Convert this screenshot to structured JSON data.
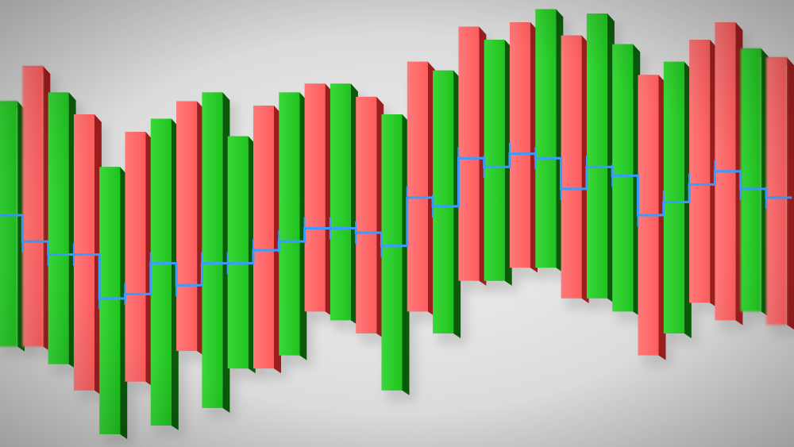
{
  "scene": {
    "description_free": true,
    "colors": {
      "background_center": "#f2f2f2",
      "background_edge": "#c9c9c9",
      "bull_front": "#1fc21f",
      "bull_light": "#3ad83a",
      "bull_side": "#0a5a0a",
      "bear_front": "#ff5c5c",
      "bear_light": "#ff7a7a",
      "bear_side": "#9a1e1e",
      "line": "#3a9cff",
      "shadow": "#9a9a9a"
    },
    "candles": [
      {
        "kind": "bull",
        "open": 0.22,
        "close": 0.78
      },
      {
        "kind": "bear",
        "open": 0.86,
        "close": 0.22
      },
      {
        "kind": "bull",
        "open": 0.18,
        "close": 0.8
      },
      {
        "kind": "bear",
        "open": 0.75,
        "close": 0.12
      },
      {
        "kind": "bull",
        "open": 0.02,
        "close": 0.63
      },
      {
        "kind": "bear",
        "open": 0.71,
        "close": 0.14
      },
      {
        "kind": "bull",
        "open": 0.04,
        "close": 0.74
      },
      {
        "kind": "bear",
        "open": 0.78,
        "close": 0.21
      },
      {
        "kind": "bull",
        "open": 0.08,
        "close": 0.8
      },
      {
        "kind": "bull",
        "open": 0.17,
        "close": 0.7
      },
      {
        "kind": "bear",
        "open": 0.77,
        "close": 0.17
      },
      {
        "kind": "bull",
        "open": 0.2,
        "close": 0.8
      },
      {
        "kind": "bear",
        "open": 0.82,
        "close": 0.3
      },
      {
        "kind": "bull",
        "open": 0.28,
        "close": 0.82
      },
      {
        "kind": "bear",
        "open": 0.79,
        "close": 0.25
      },
      {
        "kind": "bull",
        "open": 0.12,
        "close": 0.75
      },
      {
        "kind": "bear",
        "open": 0.87,
        "close": 0.3
      },
      {
        "kind": "bull",
        "open": 0.25,
        "close": 0.85
      },
      {
        "kind": "bear",
        "open": 0.95,
        "close": 0.37
      },
      {
        "kind": "bull",
        "open": 0.37,
        "close": 0.92
      },
      {
        "kind": "bear",
        "open": 0.96,
        "close": 0.4
      },
      {
        "kind": "bull",
        "open": 0.4,
        "close": 0.99
      },
      {
        "kind": "bear",
        "open": 0.93,
        "close": 0.33
      },
      {
        "kind": "bull",
        "open": 0.33,
        "close": 0.98
      },
      {
        "kind": "bull",
        "open": 0.3,
        "close": 0.91
      },
      {
        "kind": "bear",
        "open": 0.84,
        "close": 0.2
      },
      {
        "kind": "bull",
        "open": 0.25,
        "close": 0.87
      },
      {
        "kind": "bear",
        "open": 0.92,
        "close": 0.32
      },
      {
        "kind": "bear",
        "open": 0.96,
        "close": 0.28
      },
      {
        "kind": "bull",
        "open": 0.3,
        "close": 0.9
      },
      {
        "kind": "bear",
        "open": 0.88,
        "close": 0.27
      }
    ],
    "trend_line": [
      0.52,
      0.46,
      0.43,
      0.43,
      0.33,
      0.34,
      0.41,
      0.36,
      0.41,
      0.41,
      0.44,
      0.46,
      0.49,
      0.49,
      0.48,
      0.45,
      0.56,
      0.54,
      0.65,
      0.63,
      0.66,
      0.65,
      0.58,
      0.63,
      0.61,
      0.52,
      0.55,
      0.59,
      0.62,
      0.58,
      0.56
    ]
  }
}
